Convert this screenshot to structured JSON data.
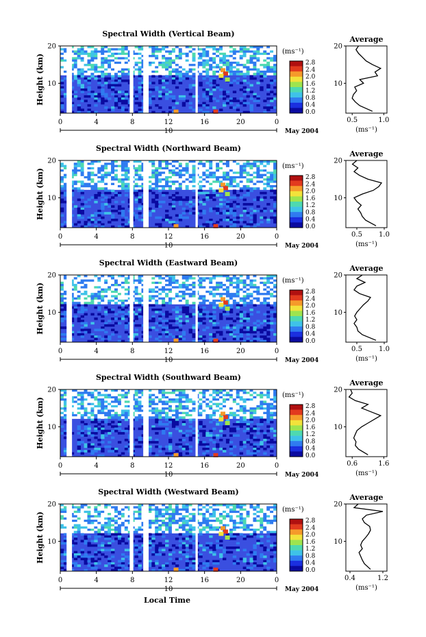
{
  "figure": {
    "xlabel": "Local Time",
    "date_label": "May 2004",
    "day_label": "10",
    "time_ticks": [
      "0",
      "4",
      "8",
      "12",
      "16",
      "20",
      "0"
    ],
    "ylabel": "Height (km)",
    "height_ticks": [
      "20",
      "10"
    ],
    "colorbar_unit": "(ms⁻¹)",
    "colorbar_ticks": [
      "2.8",
      "2.4",
      "2.0",
      "1.6",
      "1.2",
      "0.8",
      "0.4",
      "0.0"
    ],
    "average_title": "Average",
    "average_xlabel": "(ms⁻¹)"
  },
  "colors": {
    "background": "#3a4fe0",
    "colormap": [
      "#0a0aa0",
      "#1a2ee0",
      "#2f7bf0",
      "#3fc2e8",
      "#4ed9b0",
      "#9ee44e",
      "#f2e23a",
      "#f59a2a",
      "#e23a1e",
      "#b01010"
    ]
  },
  "chart_data": [
    {
      "type": "heatmap",
      "title": "Spectral Width (Vertical Beam)",
      "x_range": [
        0,
        24
      ],
      "y_range": [
        2,
        20
      ],
      "color_range": [
        0.0,
        2.8
      ],
      "avg_ticks": [
        "0.5",
        "1.0"
      ],
      "avg_xlim": [
        0.4,
        1.05
      ],
      "average_profile": {
        "height": [
          2.5,
          4,
          5,
          6,
          7,
          8,
          9,
          10,
          11,
          12,
          13,
          14,
          15,
          16,
          17,
          18,
          19,
          20
        ],
        "value": [
          0.82,
          0.62,
          0.55,
          0.5,
          0.52,
          0.57,
          0.54,
          0.68,
          0.62,
          0.9,
          0.86,
          0.95,
          0.82,
          0.72,
          0.66,
          0.6,
          0.56,
          0.6
        ]
      }
    },
    {
      "type": "heatmap",
      "title": "Spectral Width (Northward Beam)",
      "x_range": [
        0,
        24
      ],
      "y_range": [
        2,
        20
      ],
      "color_range": [
        0.0,
        2.8
      ],
      "avg_ticks": [
        "0.5",
        "1.0"
      ],
      "avg_xlim": [
        0.3,
        1.05
      ],
      "average_profile": {
        "height": [
          2.5,
          4,
          5,
          6,
          7,
          8,
          9,
          10,
          11,
          12,
          13,
          14,
          15,
          16,
          17,
          18,
          19,
          20
        ],
        "value": [
          0.85,
          0.66,
          0.6,
          0.57,
          0.52,
          0.58,
          0.5,
          0.45,
          0.6,
          0.8,
          0.9,
          0.95,
          0.7,
          0.55,
          0.45,
          0.52,
          0.42,
          0.5
        ]
      }
    },
    {
      "type": "heatmap",
      "title": "Spectral Width (Eastward Beam)",
      "x_range": [
        0,
        24
      ],
      "y_range": [
        2,
        20
      ],
      "color_range": [
        0.0,
        2.8
      ],
      "avg_ticks": [
        "0.5",
        "1.0"
      ],
      "avg_xlim": [
        0.3,
        1.05
      ],
      "average_profile": {
        "height": [
          2.5,
          4,
          5,
          6,
          7,
          8,
          9,
          10,
          11,
          12,
          13,
          14,
          15,
          16,
          17,
          18,
          19,
          20
        ],
        "value": [
          0.85,
          0.6,
          0.52,
          0.5,
          0.45,
          0.5,
          0.46,
          0.5,
          0.56,
          0.62,
          0.7,
          0.75,
          0.55,
          0.45,
          0.5,
          0.65,
          0.5,
          0.6
        ]
      }
    },
    {
      "type": "heatmap",
      "title": "Spectral Width (Southward Beam)",
      "x_range": [
        0,
        24
      ],
      "y_range": [
        2,
        20
      ],
      "color_range": [
        0.0,
        2.8
      ],
      "avg_ticks": [
        "0.6",
        "1.6"
      ],
      "avg_xlim": [
        0.4,
        1.7
      ],
      "average_profile": {
        "height": [
          2.5,
          4,
          5,
          6,
          7,
          8,
          9,
          10,
          11,
          12,
          13,
          14,
          15,
          16,
          17,
          18,
          19,
          20
        ],
        "value": [
          1.1,
          0.8,
          0.7,
          0.72,
          0.65,
          0.7,
          0.75,
          0.9,
          1.1,
          1.3,
          1.5,
          1.2,
          0.9,
          1.1,
          0.7,
          0.5,
          0.6,
          0.55
        ]
      }
    },
    {
      "type": "heatmap",
      "title": "Spectral Width (Westward Beam)",
      "x_range": [
        0,
        24
      ],
      "y_range": [
        2,
        20
      ],
      "color_range": [
        0.0,
        2.8
      ],
      "avg_ticks": [
        "0.4",
        "1.2"
      ],
      "avg_xlim": [
        0.3,
        1.3
      ],
      "average_profile": {
        "height": [
          2.5,
          4,
          5,
          6,
          7,
          8,
          9,
          10,
          11,
          12,
          13,
          14,
          15,
          16,
          17,
          18,
          19,
          20
        ],
        "value": [
          0.9,
          0.75,
          0.7,
          0.66,
          0.62,
          0.7,
          0.66,
          0.7,
          0.78,
          0.85,
          0.9,
          0.88,
          0.75,
          0.7,
          0.8,
          1.2,
          0.5,
          0.6
        ]
      }
    }
  ]
}
